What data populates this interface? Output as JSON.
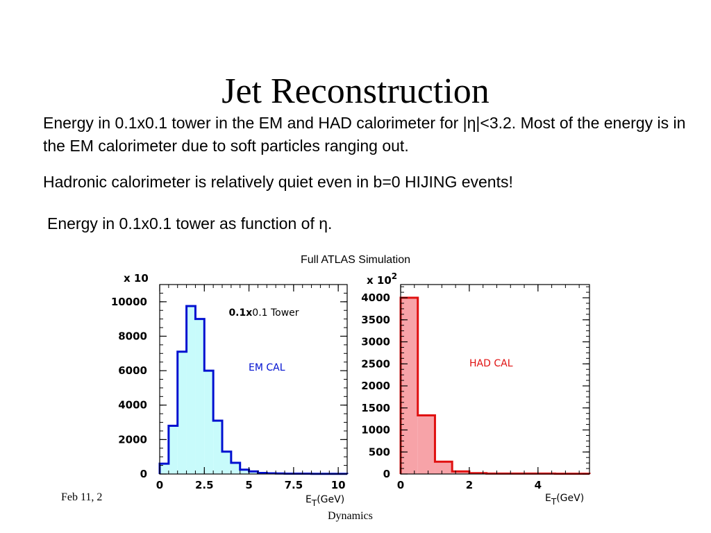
{
  "slide": {
    "title": "Jet Reconstruction",
    "para1": "Energy in 0.1x0.1 tower in the EM and HAD calorimeter for |η|<3.2. Most of the energy is in the EM calorimeter due to soft particles ranging out.",
    "para2": "Hadronic calorimeter is relatively quiet even in b=0 HIJING events!",
    "para3": "Energy in 0.1x0.1 tower as function of η.",
    "figure_caption": "Full ATLAS Simulation",
    "footer_date": "Feb 11, 2",
    "footer_cut": "Dynamics"
  },
  "chart_data": [
    {
      "type": "bar",
      "title": "",
      "scale_label": "x 10",
      "xlabel": "E",
      "xlabel_sub": "T",
      "xlabel_unit": "(GeV)",
      "annotation_bold": "0.1x",
      "annotation_rest": "0.1 Tower",
      "series_label": "EM CAL",
      "color": "#0010d0",
      "fill": "#c8fbfb",
      "xlim": [
        0,
        10.5
      ],
      "ylim": [
        0,
        11000
      ],
      "xticks": [
        0,
        2.5,
        5,
        7.5,
        10
      ],
      "xtick_labels": [
        "0",
        "2.5",
        "5",
        "7.5",
        "10"
      ],
      "yticks": [
        0,
        2000,
        4000,
        6000,
        8000,
        10000
      ],
      "ytick_labels": [
        "0",
        "2000",
        "4000",
        "6000",
        "8000",
        "10000"
      ],
      "bin_width": 0.5,
      "x": [
        0,
        0.5,
        1,
        1.5,
        2,
        2.5,
        3,
        3.5,
        4,
        4.5,
        5,
        5.5,
        6,
        6.5,
        7,
        7.5,
        8,
        8.5,
        9,
        9.5,
        10
      ],
      "values": [
        600,
        2800,
        7100,
        9750,
        9000,
        6000,
        3100,
        1300,
        650,
        250,
        150,
        60,
        40,
        30,
        20,
        20,
        20,
        10,
        10,
        10,
        10
      ]
    },
    {
      "type": "bar",
      "title": "",
      "scale_label": "x 10",
      "scale_exp": "2",
      "xlabel": "E",
      "xlabel_sub": "T",
      "xlabel_unit": "(GeV)",
      "series_label": "HAD CAL",
      "color": "#e01010",
      "fill": "#f7a3a8",
      "xlim": [
        0,
        5.5
      ],
      "ylim": [
        0,
        4300
      ],
      "xticks": [
        0,
        2,
        4
      ],
      "xtick_labels": [
        "0",
        "2",
        "4"
      ],
      "yticks": [
        0,
        500,
        1000,
        1500,
        2000,
        2500,
        3000,
        3500,
        4000
      ],
      "ytick_labels": [
        "0",
        "500",
        "1000",
        "1500",
        "2000",
        "2500",
        "3000",
        "3500",
        "4000"
      ],
      "bin_width": 0.5,
      "x": [
        0,
        0.5,
        1,
        1.5,
        2,
        2.5,
        3,
        3.5,
        4,
        4.5,
        5
      ],
      "values": [
        4000,
        1330,
        280,
        60,
        20,
        10,
        10,
        10,
        10,
        5,
        5
      ]
    }
  ]
}
